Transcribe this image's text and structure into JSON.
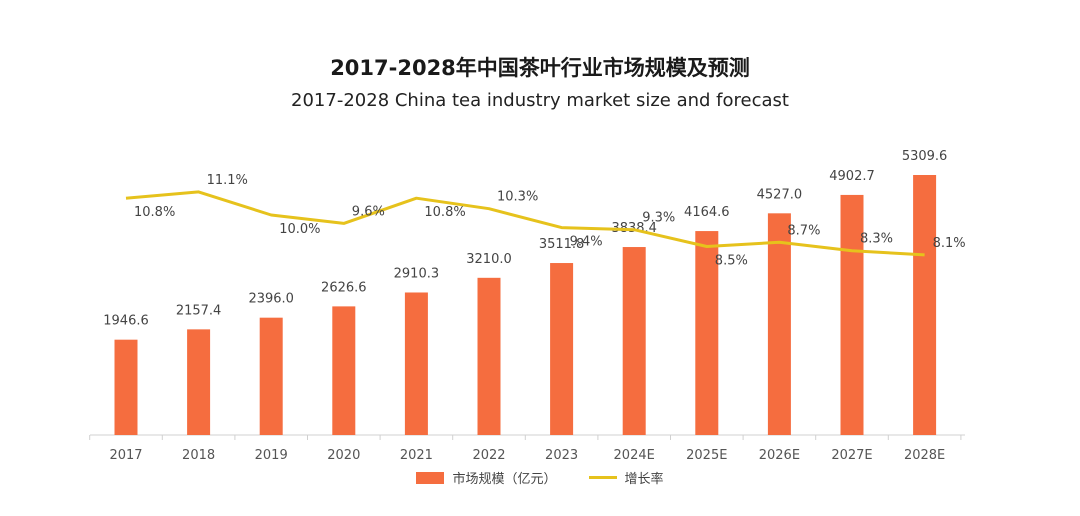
{
  "colors": {
    "bar": "#F56D3F",
    "line": "#E6C21C",
    "axis": "#D0D0D0"
  },
  "chart_data": {
    "type": "bar",
    "title": "2017-2028年中国茶叶行业市场规模及预测",
    "subtitle": "2017-2028 China tea industry market size and forecast",
    "categories": [
      "2017",
      "2018",
      "2019",
      "2020",
      "2021",
      "2022",
      "2023",
      "2024E",
      "2025E",
      "2026E",
      "2027E",
      "2028E"
    ],
    "series": [
      {
        "name": "市场规模（亿元）",
        "type": "bar",
        "values": [
          1946.6,
          2157.4,
          2396.0,
          2626.6,
          2910.3,
          3210.0,
          3511.8,
          3838.4,
          4164.6,
          4527.0,
          4902.7,
          5309.6
        ],
        "labels": [
          "1946.6",
          "2157.4",
          "2396.0",
          "2626.6",
          "2910.3",
          "3210.0",
          "3511.8",
          "3838.4",
          "4164.6",
          "4527.0",
          "4902.7",
          "5309.6"
        ]
      },
      {
        "name": "增长率",
        "type": "line",
        "values": [
          10.8,
          11.1,
          10.0,
          9.6,
          10.8,
          10.3,
          9.4,
          9.3,
          8.5,
          8.7,
          8.3,
          8.1
        ],
        "labels": [
          "10.8%",
          "11.1%",
          "10.0%",
          "9.6%",
          "10.8%",
          "10.3%",
          "9.4%",
          "9.3%",
          "8.5%",
          "8.7%",
          "8.3%",
          "8.1%"
        ]
      }
    ],
    "grid": false,
    "legend": "bottom"
  }
}
